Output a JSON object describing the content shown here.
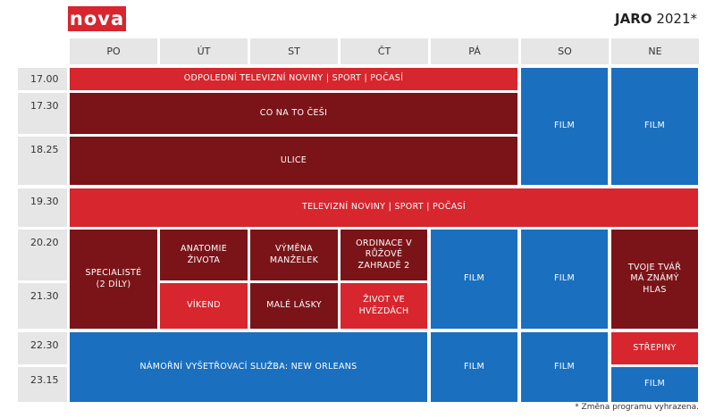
{
  "header": {
    "logo": "nova",
    "title": "JARO",
    "year": "2021*"
  },
  "days": [
    "PO",
    "ÚT",
    "ST",
    "ČT",
    "PÁ",
    "SO",
    "NE"
  ],
  "times": [
    "17.00",
    "17.30",
    "18.25",
    "19.30",
    "20.20",
    "21.30",
    "22.30",
    "23.15"
  ],
  "programs": [
    "ODPOLEDNÍ TELEVIZNÍ NOVINY | SPORT | POČASÍ",
    "CO NA TO ČEŠI",
    "ULICE",
    "FILM",
    "FILM",
    "TELEVIZNÍ NOVINY | SPORT | POČASÍ",
    "SPECIALISTÉ (2 DÍLY)",
    "ANATOMIE ŽIVOTA",
    "VÝMĚNA MANŽELEK",
    "ORDINACE V RŮŽOVÉ ZAHRADĚ 2",
    "FILM",
    "FILM",
    "TVOJE TVÁŘ MÁ ZNÁMÝ HLAS",
    "VÍKEND",
    "MALÉ LÁSKY",
    "ŽIVOT VE HVĚZDÁCH",
    "NÁMOŘNÍ VYŠETŘOVACÍ SLUŽBA: NEW ORLEANS",
    "FILM",
    "FILM",
    "STŘEPINY",
    "FILM"
  ],
  "footnote": "* Změna programu vyhrazena."
}
